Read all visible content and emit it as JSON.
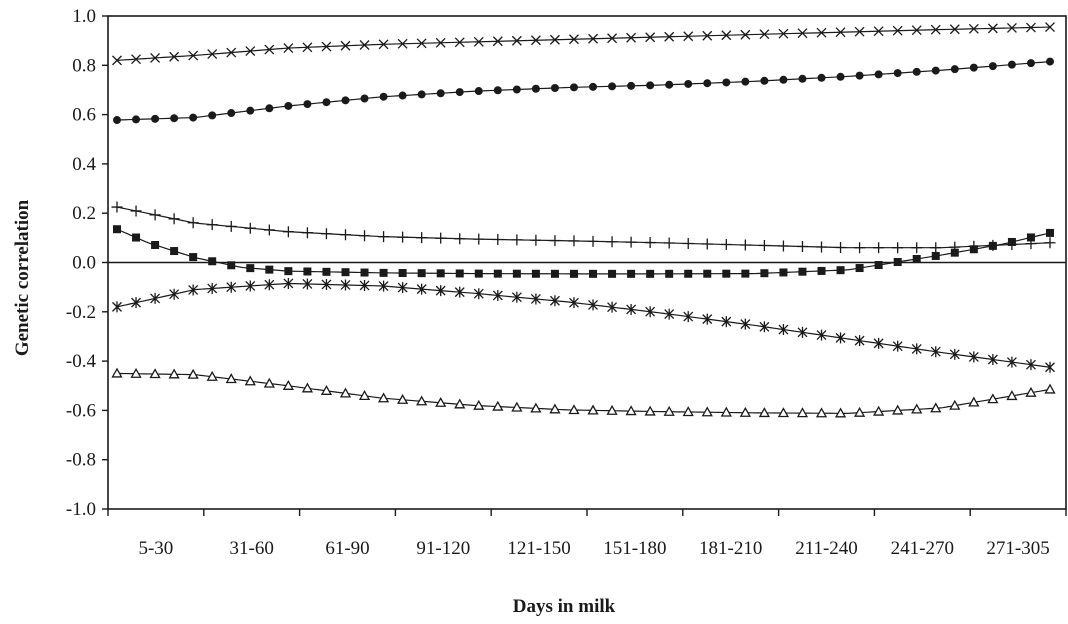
{
  "chart_data": {
    "type": "line",
    "xlabel": "Days in milk",
    "ylabel": "Genetic correlation",
    "ylim": [
      -1.0,
      1.0
    ],
    "y_ticks": [
      "1.0",
      "0.8",
      "0.6",
      "0.4",
      "0.2",
      "0.0",
      "-0.2",
      "-0.4",
      "-0.6",
      "-0.8",
      "-1.0"
    ],
    "categories": [
      "5-30",
      "31-60",
      "61-90",
      "91-120",
      "121-150",
      "151-180",
      "181-210",
      "211-240",
      "241-270",
      "271-305"
    ],
    "x_days": [
      5,
      305
    ],
    "grid": false,
    "legend": "none",
    "zero_line": true,
    "series": [
      {
        "marker": "cross-x",
        "points": [
          [
            5,
            0.82
          ],
          [
            30,
            0.84
          ],
          [
            60,
            0.87
          ],
          [
            90,
            0.885
          ],
          [
            120,
            0.895
          ],
          [
            150,
            0.905
          ],
          [
            180,
            0.915
          ],
          [
            210,
            0.925
          ],
          [
            240,
            0.935
          ],
          [
            270,
            0.945
          ],
          [
            305,
            0.955
          ]
        ]
      },
      {
        "marker": "filled-circle",
        "points": [
          [
            5,
            0.578
          ],
          [
            30,
            0.588
          ],
          [
            60,
            0.635
          ],
          [
            90,
            0.672
          ],
          [
            120,
            0.695
          ],
          [
            150,
            0.71
          ],
          [
            180,
            0.72
          ],
          [
            210,
            0.735
          ],
          [
            240,
            0.755
          ],
          [
            270,
            0.78
          ],
          [
            305,
            0.815
          ]
        ]
      },
      {
        "marker": "plus",
        "points": [
          [
            5,
            0.225
          ],
          [
            30,
            0.16
          ],
          [
            60,
            0.125
          ],
          [
            90,
            0.105
          ],
          [
            120,
            0.095
          ],
          [
            150,
            0.088
          ],
          [
            180,
            0.08
          ],
          [
            210,
            0.07
          ],
          [
            240,
            0.06
          ],
          [
            270,
            0.06
          ],
          [
            305,
            0.08
          ]
        ]
      },
      {
        "marker": "filled-square",
        "points": [
          [
            5,
            0.135
          ],
          [
            15,
            0.08
          ],
          [
            30,
            0.02
          ],
          [
            45,
            -0.02
          ],
          [
            60,
            -0.035
          ],
          [
            90,
            -0.042
          ],
          [
            120,
            -0.045
          ],
          [
            150,
            -0.046
          ],
          [
            180,
            -0.046
          ],
          [
            210,
            -0.045
          ],
          [
            240,
            -0.03
          ],
          [
            255,
            0.0
          ],
          [
            270,
            0.03
          ],
          [
            290,
            0.075
          ],
          [
            305,
            0.12
          ]
        ]
      },
      {
        "marker": "asterisk",
        "points": [
          [
            5,
            -0.18
          ],
          [
            30,
            -0.11
          ],
          [
            60,
            -0.085
          ],
          [
            90,
            -0.095
          ],
          [
            120,
            -0.125
          ],
          [
            150,
            -0.16
          ],
          [
            180,
            -0.205
          ],
          [
            210,
            -0.255
          ],
          [
            240,
            -0.31
          ],
          [
            270,
            -0.365
          ],
          [
            305,
            -0.425
          ]
        ]
      },
      {
        "marker": "open-triangle",
        "points": [
          [
            5,
            -0.45
          ],
          [
            30,
            -0.455
          ],
          [
            60,
            -0.5
          ],
          [
            90,
            -0.55
          ],
          [
            120,
            -0.58
          ],
          [
            150,
            -0.598
          ],
          [
            180,
            -0.605
          ],
          [
            210,
            -0.61
          ],
          [
            240,
            -0.612
          ],
          [
            270,
            -0.59
          ],
          [
            305,
            -0.515
          ]
        ]
      }
    ]
  },
  "colors": {
    "ink": "#1a1a1a",
    "background": "#ffffff"
  }
}
